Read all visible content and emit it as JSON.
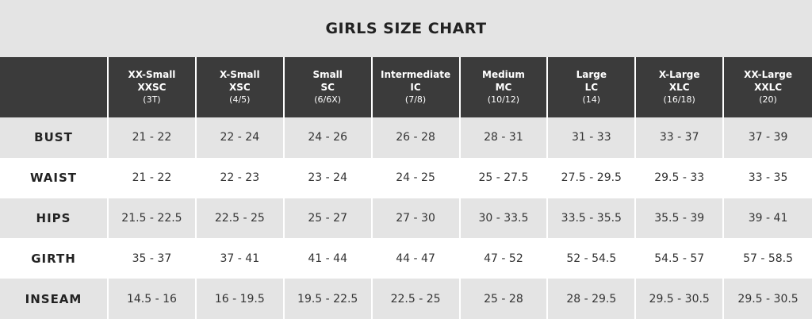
{
  "title": "GIRLS SIZE CHART",
  "columns": [
    {
      "name": "XX-Small",
      "code": "XXSC",
      "age": "(3T)"
    },
    {
      "name": "X-Small",
      "code": "XSC",
      "age": "(4/5)"
    },
    {
      "name": "Small",
      "code": "SC",
      "age": "(6/6X)"
    },
    {
      "name": "Intermediate",
      "code": "IC",
      "age": "(7/8)"
    },
    {
      "name": "Medium",
      "code": "MC",
      "age": "(10/12)"
    },
    {
      "name": "Large",
      "code": "LC",
      "age": "(14)"
    },
    {
      "name": "X-Large",
      "code": "XLC",
      "age": "(16/18)"
    },
    {
      "name": "XX-Large",
      "code": "XXLC",
      "age": "(20)"
    }
  ],
  "rows": [
    {
      "label": "BUST",
      "values": [
        "21 - 22",
        "22 - 24",
        "24 - 26",
        "26 - 28",
        "28 - 31",
        "31 - 33",
        "33 - 37",
        "37 - 39"
      ]
    },
    {
      "label": "WAIST",
      "values": [
        "21 - 22",
        "22 - 23",
        "23 - 24",
        "24 - 25",
        "25 - 27.5",
        "27.5 - 29.5",
        "29.5 - 33",
        "33 - 35"
      ]
    },
    {
      "label": "HIPS",
      "values": [
        "21.5 - 22.5",
        "22.5 - 25",
        "25 - 27",
        "27 - 30",
        "30 - 33.5",
        "33.5 - 35.5",
        "35.5 - 39",
        "39 - 41"
      ]
    },
    {
      "label": "GIRTH",
      "values": [
        "35 - 37",
        "37 - 41",
        "41 - 44",
        "44 - 47",
        "47 - 52",
        "52 - 54.5",
        "54.5 - 57",
        "57 - 58.5"
      ]
    },
    {
      "label": "INSEAM",
      "values": [
        "14.5 - 16",
        "16 - 19.5",
        "19.5 - 22.5",
        "22.5 - 25",
        "25 - 28",
        "28 - 29.5",
        "29.5 - 30.5",
        "29.5 - 30.5"
      ]
    }
  ]
}
